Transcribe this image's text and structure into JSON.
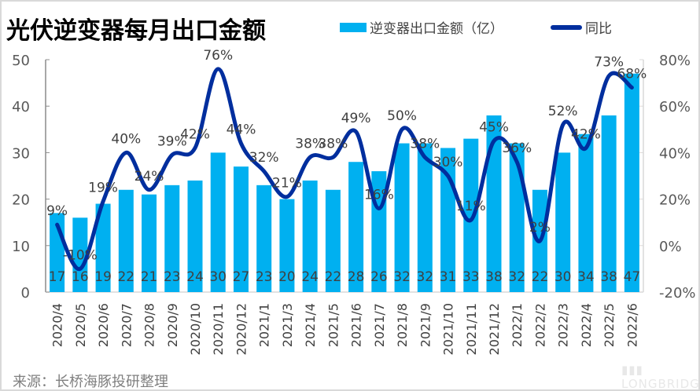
{
  "chart_data": {
    "type": "bar+line",
    "title": "光伏逆变器每月出口金额",
    "categories": [
      "2020/4",
      "2020/5",
      "2020/6",
      "2020/7",
      "2020/8",
      "2020/9",
      "2020/10",
      "2020/11",
      "2020/12",
      "2021/1",
      "2021/3",
      "2021/4",
      "2021/5",
      "2021/6",
      "2021/7",
      "2021/8",
      "2021/9",
      "2021/10",
      "2021/11",
      "2021/12",
      "2022/1",
      "2022/2",
      "2022/3",
      "2022/4",
      "2022/5",
      "2022/6"
    ],
    "series": [
      {
        "name": "逆变器出口金额（亿）",
        "type": "bar",
        "axis": "left",
        "color": "#00b0f0",
        "values": [
          17,
          16,
          19,
          22,
          21,
          23,
          24,
          30,
          27,
          23,
          20,
          24,
          22,
          28,
          26,
          32,
          32,
          31,
          33,
          38,
          32,
          22,
          30,
          34,
          38,
          47
        ]
      },
      {
        "name": "同比",
        "type": "line",
        "axis": "right",
        "color": "#002e9e",
        "unit": "%",
        "values": [
          9,
          -10,
          19,
          40,
          24,
          39,
          42,
          76,
          44,
          32,
          21,
          38,
          38,
          49,
          16,
          50,
          38,
          30,
          11,
          45,
          36,
          2,
          52,
          42,
          73,
          68
        ]
      }
    ],
    "left_axis": {
      "ylim": [
        0,
        50
      ],
      "ticks": [
        "0",
        "10",
        "20",
        "30",
        "40",
        "50"
      ]
    },
    "right_axis": {
      "ylim": [
        -20,
        80
      ],
      "ticks": [
        "-20%",
        "0%",
        "20%",
        "40%",
        "60%",
        "80%"
      ]
    },
    "legend": "top-right",
    "grid": false
  },
  "source": "来源：长桥海豚投研整理",
  "watermark": "LONGBRIDGE"
}
